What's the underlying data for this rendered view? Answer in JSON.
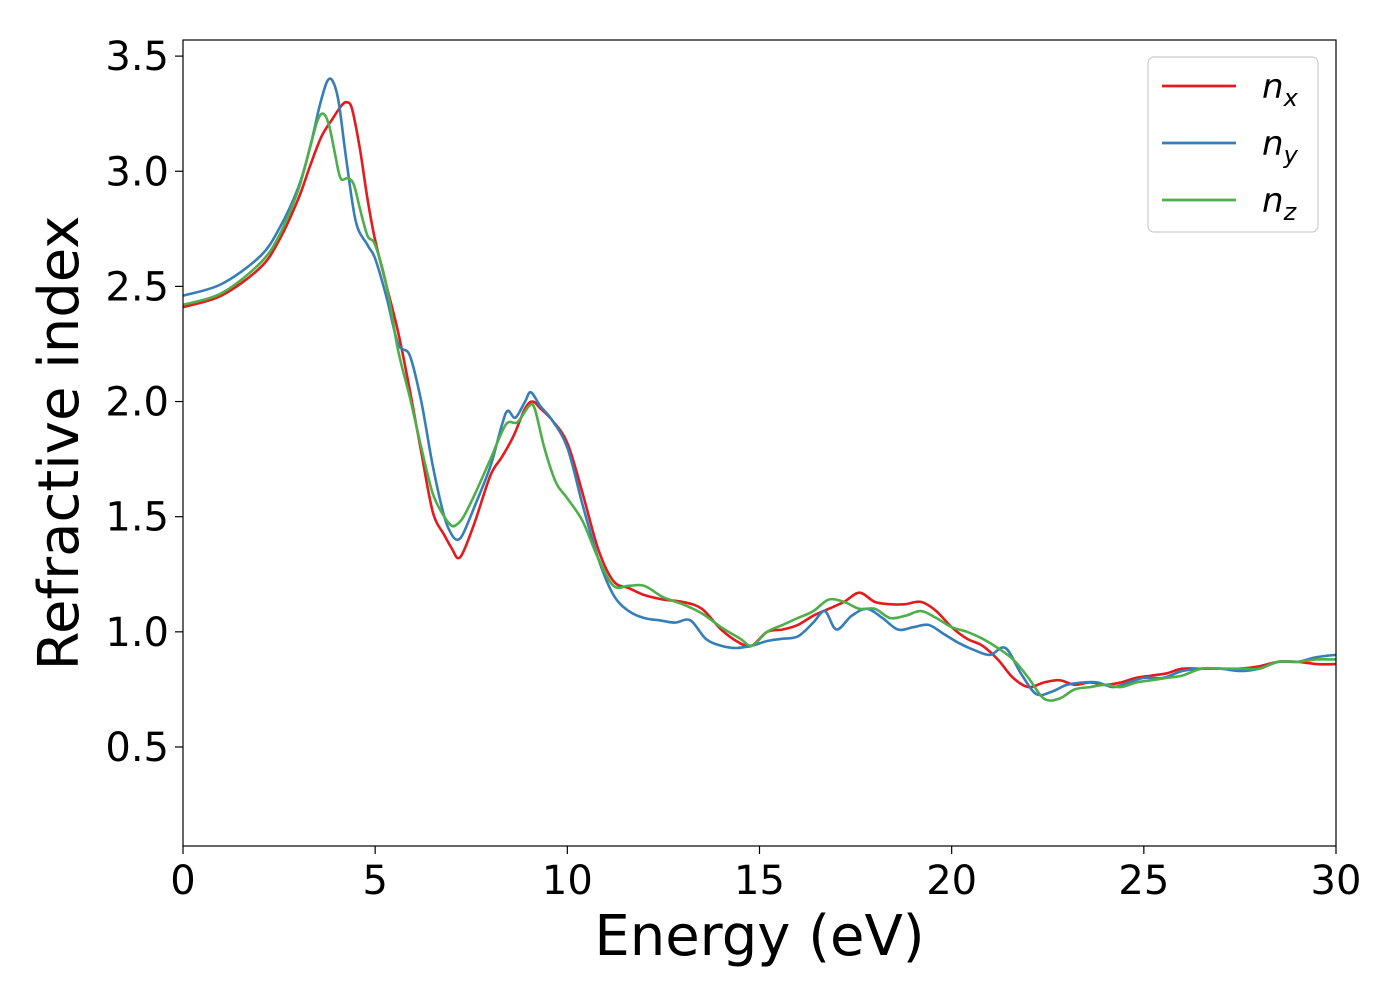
{
  "chart_data": {
    "type": "line",
    "title": "",
    "xlabel": "Energy (eV)",
    "ylabel": "Refractive index",
    "xlim": [
      0,
      30
    ],
    "ylim": [
      0.07,
      3.57
    ],
    "xticks": [
      0,
      5,
      10,
      15,
      20,
      25,
      30
    ],
    "yticks": [
      0.5,
      1.0,
      1.5,
      2.0,
      2.5,
      3.0,
      3.5
    ],
    "xtick_labels": [
      "0",
      "5",
      "10",
      "15",
      "20",
      "25",
      "30"
    ],
    "ytick_labels": [
      "0.5",
      "1.0",
      "1.5",
      "2.0",
      "2.5",
      "3.0",
      "3.5"
    ],
    "grid": false,
    "legend_position": "top-right",
    "series": [
      {
        "name": "n",
        "subscript": "x",
        "color": "#e41a1c",
        "x": [
          0,
          1,
          2,
          2.5,
          3,
          3.3,
          3.6,
          3.9,
          4.1,
          4.25,
          4.4,
          4.6,
          4.8,
          5.0,
          5.3,
          5.6,
          5.9,
          6.2,
          6.5,
          6.8,
          7.0,
          7.15,
          7.3,
          7.6,
          8.0,
          8.3,
          8.6,
          8.9,
          9.1,
          9.3,
          9.6,
          10.0,
          10.4,
          10.8,
          11.2,
          11.6,
          12.0,
          12.5,
          13.0,
          13.5,
          14.0,
          14.5,
          14.8,
          15.2,
          15.6,
          16.0,
          16.4,
          16.8,
          17.2,
          17.6,
          18.0,
          18.4,
          18.8,
          19.2,
          19.6,
          20.0,
          20.4,
          20.8,
          21.2,
          21.6,
          22.0,
          22.4,
          22.8,
          23.2,
          23.6,
          24.0,
          24.4,
          24.8,
          25.2,
          25.6,
          26.0,
          26.5,
          27.0,
          27.5,
          28.0,
          28.5,
          29.0,
          29.5,
          30.0
        ],
        "y": [
          2.41,
          2.46,
          2.58,
          2.7,
          2.88,
          3.02,
          3.15,
          3.23,
          3.28,
          3.3,
          3.27,
          3.1,
          2.88,
          2.7,
          2.5,
          2.3,
          2.05,
          1.78,
          1.52,
          1.42,
          1.36,
          1.32,
          1.35,
          1.48,
          1.68,
          1.76,
          1.85,
          1.97,
          2.0,
          1.97,
          1.92,
          1.82,
          1.6,
          1.36,
          1.22,
          1.19,
          1.16,
          1.14,
          1.13,
          1.1,
          1.01,
          0.95,
          0.94,
          1.0,
          1.01,
          1.03,
          1.07,
          1.1,
          1.13,
          1.17,
          1.13,
          1.12,
          1.12,
          1.13,
          1.09,
          1.02,
          0.97,
          0.94,
          0.88,
          0.8,
          0.76,
          0.78,
          0.79,
          0.77,
          0.78,
          0.77,
          0.78,
          0.8,
          0.81,
          0.82,
          0.84,
          0.84,
          0.84,
          0.84,
          0.85,
          0.87,
          0.87,
          0.86,
          0.86
        ]
      },
      {
        "name": "n",
        "subscript": "y",
        "color": "#377eb8",
        "x": [
          0,
          1,
          2,
          2.5,
          3,
          3.3,
          3.55,
          3.75,
          3.9,
          4.05,
          4.25,
          4.5,
          4.8,
          5.0,
          5.3,
          5.6,
          5.9,
          6.2,
          6.5,
          6.8,
          7.0,
          7.15,
          7.3,
          7.6,
          8.0,
          8.3,
          8.45,
          8.65,
          8.9,
          9.05,
          9.3,
          9.6,
          10.0,
          10.4,
          10.8,
          11.2,
          11.6,
          12.0,
          12.4,
          12.8,
          13.2,
          13.6,
          14.0,
          14.4,
          14.8,
          15.2,
          15.6,
          16.0,
          16.4,
          16.7,
          17.0,
          17.4,
          17.8,
          18.2,
          18.6,
          19.0,
          19.4,
          19.8,
          20.2,
          20.6,
          21.0,
          21.4,
          21.8,
          22.2,
          22.6,
          23.0,
          23.4,
          23.8,
          24.2,
          24.6,
          25.0,
          25.5,
          26.0,
          26.5,
          27.0,
          27.5,
          28.0,
          28.5,
          29.0,
          29.5,
          30.0
        ],
        "y": [
          2.46,
          2.51,
          2.63,
          2.75,
          2.93,
          3.1,
          3.28,
          3.39,
          3.39,
          3.3,
          3.05,
          2.78,
          2.68,
          2.62,
          2.45,
          2.25,
          2.2,
          2.0,
          1.72,
          1.5,
          1.42,
          1.4,
          1.43,
          1.55,
          1.72,
          1.9,
          1.96,
          1.93,
          2.0,
          2.04,
          1.98,
          1.92,
          1.8,
          1.55,
          1.32,
          1.16,
          1.09,
          1.06,
          1.05,
          1.04,
          1.05,
          0.97,
          0.94,
          0.93,
          0.94,
          0.96,
          0.97,
          0.98,
          1.04,
          1.09,
          1.01,
          1.07,
          1.1,
          1.06,
          1.01,
          1.02,
          1.03,
          0.99,
          0.95,
          0.92,
          0.9,
          0.93,
          0.82,
          0.73,
          0.74,
          0.77,
          0.78,
          0.78,
          0.76,
          0.78,
          0.8,
          0.8,
          0.83,
          0.84,
          0.84,
          0.83,
          0.84,
          0.87,
          0.87,
          0.89,
          0.9
        ]
      },
      {
        "name": "n",
        "subscript": "z",
        "color": "#4daf4a",
        "x": [
          0,
          1,
          2,
          2.5,
          3,
          3.3,
          3.5,
          3.65,
          3.8,
          3.95,
          4.1,
          4.3,
          4.45,
          4.6,
          4.8,
          5.0,
          5.3,
          5.6,
          5.9,
          6.2,
          6.5,
          6.8,
          7.0,
          7.15,
          7.3,
          7.6,
          8.0,
          8.4,
          8.7,
          9.0,
          9.15,
          9.4,
          9.7,
          10.0,
          10.4,
          10.8,
          11.2,
          11.6,
          12.0,
          12.5,
          13.0,
          13.5,
          14.0,
          14.5,
          14.8,
          15.2,
          15.6,
          16.0,
          16.4,
          16.8,
          17.2,
          17.6,
          18.0,
          18.4,
          18.8,
          19.2,
          19.6,
          20.0,
          20.4,
          20.8,
          21.2,
          21.6,
          22.0,
          22.4,
          22.8,
          23.2,
          23.6,
          24.0,
          24.4,
          24.8,
          25.2,
          25.6,
          26.0,
          26.5,
          27.0,
          27.5,
          28.0,
          28.5,
          29.0,
          29.5,
          30.0
        ],
        "y": [
          2.42,
          2.47,
          2.6,
          2.72,
          2.92,
          3.1,
          3.22,
          3.25,
          3.2,
          3.08,
          2.97,
          2.97,
          2.94,
          2.84,
          2.72,
          2.68,
          2.5,
          2.22,
          2.02,
          1.8,
          1.6,
          1.5,
          1.46,
          1.47,
          1.5,
          1.6,
          1.75,
          1.9,
          1.91,
          1.98,
          1.97,
          1.8,
          1.65,
          1.58,
          1.48,
          1.32,
          1.2,
          1.2,
          1.2,
          1.15,
          1.12,
          1.08,
          1.02,
          0.97,
          0.94,
          1.0,
          1.03,
          1.06,
          1.09,
          1.14,
          1.13,
          1.1,
          1.1,
          1.06,
          1.07,
          1.09,
          1.06,
          1.02,
          1.0,
          0.97,
          0.93,
          0.88,
          0.8,
          0.71,
          0.71,
          0.75,
          0.76,
          0.77,
          0.76,
          0.78,
          0.79,
          0.8,
          0.81,
          0.84,
          0.84,
          0.84,
          0.84,
          0.87,
          0.87,
          0.88,
          0.88
        ]
      }
    ]
  }
}
